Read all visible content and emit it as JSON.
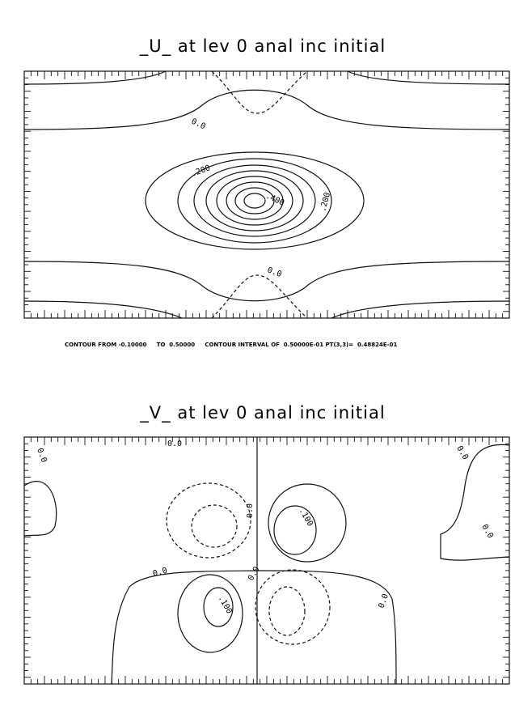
{
  "panels": [
    {
      "title": "_U_ at lev 0 anal inc  initial",
      "contour_labels": [
        "0.0",
        ".200",
        ".400",
        ".200",
        "0.0"
      ],
      "footer": "CONTOUR FROM -0.10000     TO  0.50000     CONTOUR INTERVAL OF  0.50000E-01 PT(3,3)=  0.48824E-01"
    },
    {
      "title": "_V_ at lev 0 anal inc  initial",
      "contour_labels": [
        "0.0",
        "0.0",
        "0.0",
        ".100",
        "0.0",
        "0.0",
        ".100",
        "0.0",
        "0.0",
        "0.0"
      ]
    }
  ]
}
